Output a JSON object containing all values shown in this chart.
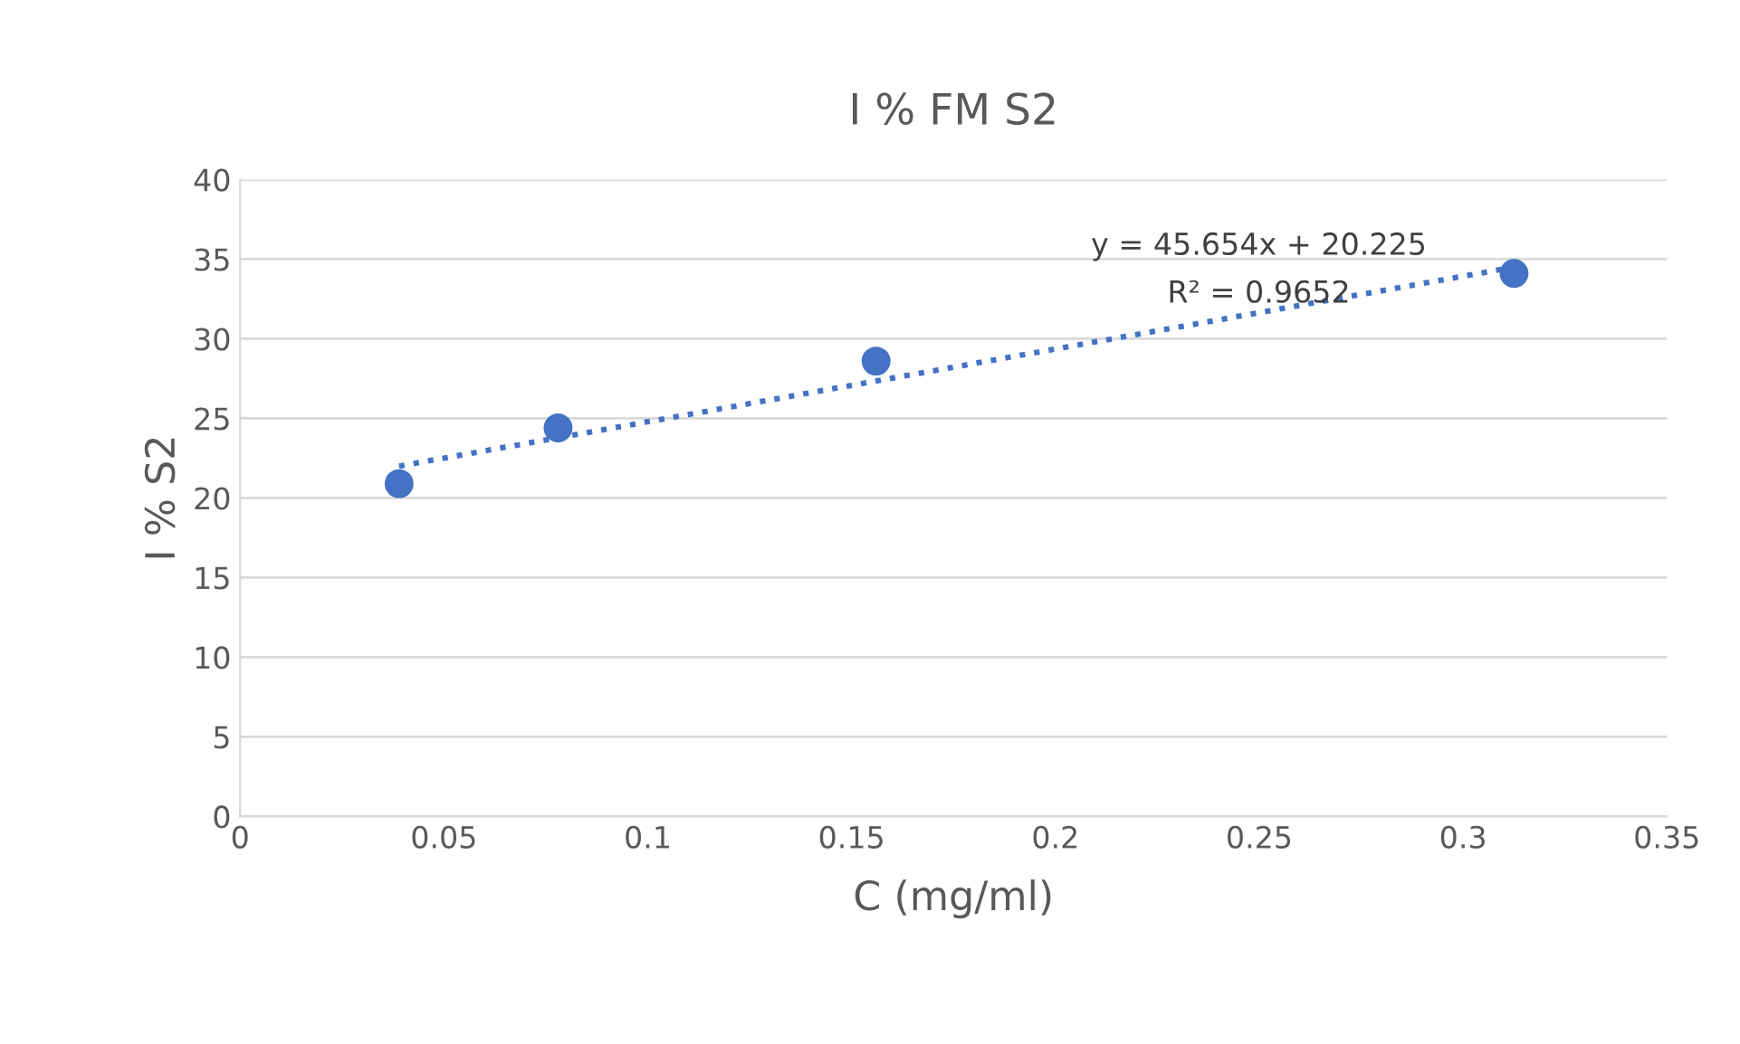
{
  "chart_data": {
    "type": "scatter",
    "title": "I % FM S2",
    "xlabel": "C (mg/ml)",
    "ylabel": "I % S2",
    "xlim": [
      0,
      0.35
    ],
    "xticks": [
      0,
      0.05,
      0.1,
      0.15,
      0.2,
      0.25,
      0.3,
      0.35
    ],
    "ylim": [
      0,
      40
    ],
    "yticks": [
      0,
      5,
      10,
      15,
      20,
      25,
      30,
      35,
      40
    ],
    "grid": "y",
    "legend": false,
    "series": [
      {
        "color": "#4472c4",
        "marker": "circle",
        "x": [
          0.039,
          0.078,
          0.156,
          0.3125
        ],
        "values": [
          20.9,
          24.4,
          28.6,
          34.1
        ]
      },
      {
        "type": "line",
        "color": "#4472c4",
        "line_style": "dotted",
        "marker": "none",
        "x": [
          0.039,
          0.3125
        ],
        "values": [
          22.0,
          34.5
        ]
      }
    ],
    "annotations": [
      "y = 45.654x + 20.225",
      "R² = 0.9652"
    ]
  }
}
